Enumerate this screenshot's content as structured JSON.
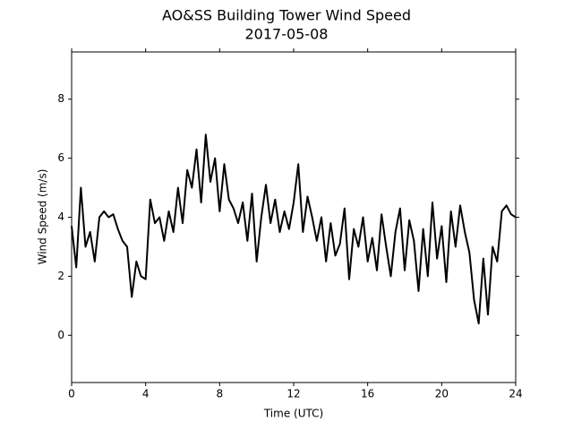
{
  "chart_data": {
    "type": "line",
    "title": "AO&SS Building Tower Wind Speed",
    "subtitle": "2017-05-08",
    "x_label": "Time (UTC)",
    "y_label": "Wind Speed (m/s)",
    "xlim": [
      0,
      24
    ],
    "xticks": [
      0,
      4,
      8,
      12,
      16,
      20,
      24
    ],
    "ylim": [
      -1.6,
      9.6
    ],
    "yticks": [
      0,
      2,
      4,
      6,
      8
    ],
    "grid": false,
    "series": [
      {
        "name": "Wind Speed",
        "color": "#000000",
        "x": [
          0,
          0.25,
          0.5,
          0.75,
          1,
          1.25,
          1.5,
          1.75,
          2,
          2.25,
          2.5,
          2.75,
          3,
          3.25,
          3.5,
          3.75,
          4,
          4.25,
          4.5,
          4.75,
          5,
          5.25,
          5.5,
          5.75,
          6,
          6.25,
          6.5,
          6.75,
          7,
          7.25,
          7.5,
          7.75,
          8,
          8.25,
          8.5,
          8.75,
          9,
          9.25,
          9.5,
          9.75,
          10,
          10.25,
          10.5,
          10.75,
          11,
          11.25,
          11.5,
          11.75,
          12,
          12.25,
          12.5,
          12.75,
          13,
          13.25,
          13.5,
          13.75,
          14,
          14.25,
          14.5,
          14.75,
          15,
          15.25,
          15.5,
          15.75,
          16,
          16.25,
          16.5,
          16.75,
          17,
          17.25,
          17.5,
          17.75,
          18,
          18.25,
          18.5,
          18.75,
          19,
          19.25,
          19.5,
          19.75,
          20,
          20.25,
          20.5,
          20.75,
          21,
          21.25,
          21.5,
          21.75,
          22,
          22.25,
          22.5,
          22.75,
          23,
          23.25,
          23.5,
          23.75,
          24
        ],
        "values": [
          3.7,
          2.3,
          5.0,
          3.0,
          3.5,
          2.5,
          4.0,
          4.2,
          4.0,
          4.1,
          3.6,
          3.2,
          3.0,
          1.3,
          2.5,
          2.0,
          1.9,
          4.6,
          3.8,
          4.0,
          3.2,
          4.2,
          3.5,
          5.0,
          3.8,
          5.6,
          5.0,
          6.3,
          4.5,
          6.8,
          5.2,
          6.0,
          4.2,
          5.8,
          4.6,
          4.3,
          3.8,
          4.5,
          3.2,
          4.8,
          2.5,
          4.0,
          5.1,
          3.8,
          4.6,
          3.5,
          4.2,
          3.6,
          4.5,
          5.8,
          3.5,
          4.7,
          4.0,
          3.2,
          4.0,
          2.5,
          3.8,
          2.7,
          3.1,
          4.3,
          1.9,
          3.6,
          3.0,
          4.0,
          2.5,
          3.3,
          2.2,
          4.1,
          3.0,
          2.0,
          3.5,
          4.3,
          2.2,
          3.9,
          3.2,
          1.5,
          3.6,
          2.0,
          4.5,
          2.6,
          3.7,
          1.8,
          4.2,
          3.0,
          4.4,
          3.5,
          2.8,
          1.2,
          0.4,
          2.6,
          0.7,
          3.0,
          2.5,
          4.2,
          4.4,
          4.1,
          4.0
        ]
      }
    ]
  }
}
